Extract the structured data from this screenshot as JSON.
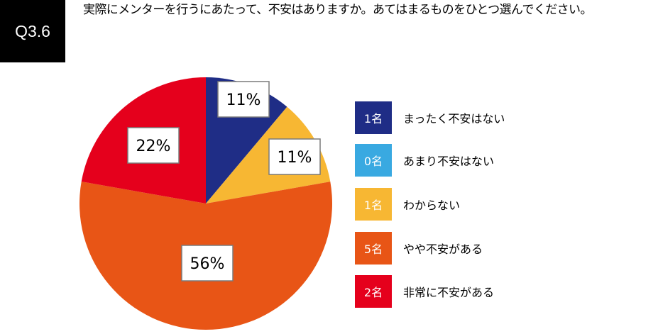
{
  "question": {
    "number": "Q3.6",
    "text": "実際にメンターを行うにあたって、不安はありますか。あてはまるものをひとつ選んでください。"
  },
  "chart_data": {
    "type": "pie",
    "title": "",
    "slices": [
      {
        "label": "まったく不安はない",
        "count_label": "1名",
        "count": 1,
        "percent": 11,
        "value_label": "11%",
        "color": "#1f2d86"
      },
      {
        "label": "あまり不安はない",
        "count_label": "0名",
        "count": 0,
        "percent": 0,
        "value_label": "",
        "color": "#39a9e1"
      },
      {
        "label": "わからない",
        "count_label": "1名",
        "count": 1,
        "percent": 11,
        "value_label": "11%",
        "color": "#f7b733"
      },
      {
        "label": "やや不安がある",
        "count_label": "5名",
        "count": 5,
        "percent": 56,
        "value_label": "56%",
        "color": "#e85516"
      },
      {
        "label": "非常に不安がある",
        "count_label": "2名",
        "count": 2,
        "percent": 22,
        "value_label": "22%",
        "color": "#e5001c"
      }
    ],
    "legend_position": "right"
  }
}
